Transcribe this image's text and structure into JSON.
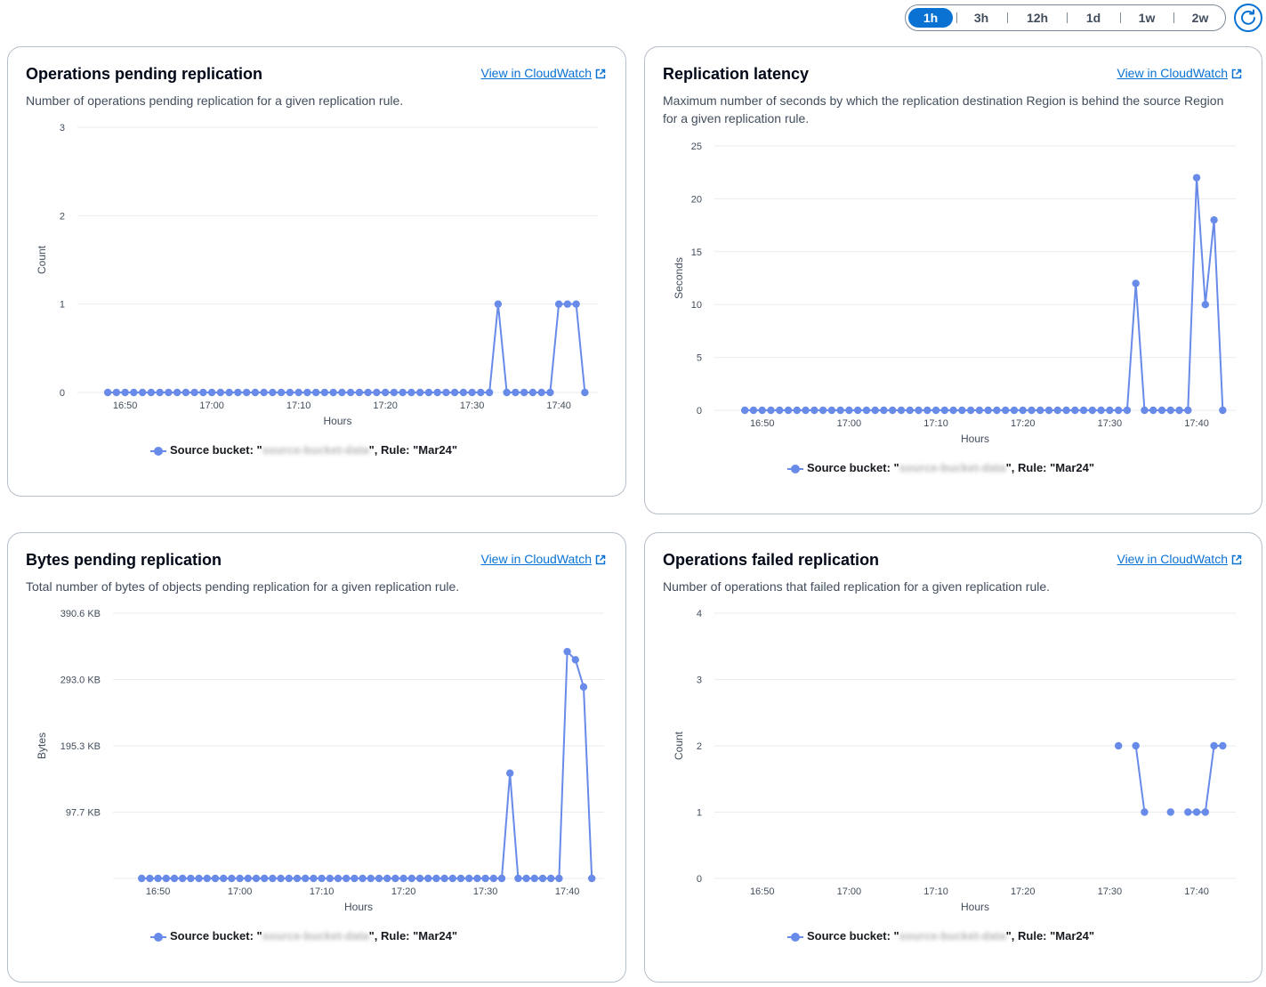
{
  "time_range": {
    "options": [
      "1h",
      "3h",
      "12h",
      "1d",
      "1w",
      "2w"
    ],
    "selected": "1h",
    "refresh_icon": "refresh-icon"
  },
  "colors": {
    "series": "#688ae8",
    "accent": "#0972d3"
  },
  "panels": [
    {
      "title": "Operations pending replication",
      "link": "View in CloudWatch",
      "description": "Number of operations pending replication for a given replication rule.",
      "legend": {
        "prefix": "Source bucket: \"",
        "redacted": "source-bucket-data",
        "suffix": "\", Rule: \"Mar24\""
      }
    },
    {
      "title": "Replication latency",
      "link": "View in CloudWatch",
      "description": "Maximum number of seconds by which the replication destination Region is behind the source Region for a given replication rule.",
      "legend": {
        "prefix": "Source bucket: \"",
        "redacted": "source-bucket-data",
        "suffix": "\", Rule: \"Mar24\""
      }
    },
    {
      "title": "Bytes pending replication",
      "link": "View in CloudWatch",
      "description": "Total number of bytes of objects pending replication for a given replication rule.",
      "legend": {
        "prefix": "Source bucket: \"",
        "redacted": "source-bucket-data",
        "suffix": "\", Rule: \"Mar24\""
      }
    },
    {
      "title": "Operations failed replication",
      "link": "View in CloudWatch",
      "description": "Number of operations that failed replication for a given replication rule.",
      "legend": {
        "prefix": "Source bucket: \"",
        "redacted": "source-bucket-data",
        "suffix": "\", Rule: \"Mar24\""
      }
    }
  ],
  "chart_data": [
    {
      "type": "line",
      "ylabel": "Count",
      "xlabel": "Hours",
      "ylim": [
        0,
        3
      ],
      "yticks": [
        "0",
        "1",
        "2",
        "3"
      ],
      "xticks": [
        "16:50",
        "17:00",
        "17:10",
        "17:20",
        "17:30",
        "17:40"
      ],
      "xlim_minutes": [
        -55.5,
        -3.5
      ],
      "x_minutes_from_1700": [
        -12,
        -11,
        -10,
        -9,
        -8,
        -7,
        -6,
        -5,
        -4,
        -3,
        -2,
        -1,
        0,
        1,
        2,
        3,
        4,
        5,
        6,
        7,
        8,
        9,
        10,
        11,
        12,
        13,
        14,
        15,
        16,
        17,
        18,
        19,
        20,
        21,
        22,
        23,
        24,
        25,
        26,
        27,
        28,
        29,
        30,
        31,
        32,
        33,
        34,
        35,
        36,
        37,
        38,
        39,
        40,
        41,
        42,
        43
      ],
      "series": [
        {
          "values": [
            0,
            0,
            0,
            0,
            0,
            0,
            0,
            0,
            0,
            0,
            0,
            0,
            0,
            0,
            0,
            0,
            0,
            0,
            0,
            0,
            0,
            0,
            0,
            0,
            0,
            0,
            0,
            0,
            0,
            0,
            0,
            0,
            0,
            0,
            0,
            0,
            0,
            0,
            0,
            0,
            0,
            0,
            0,
            0,
            0,
            1,
            0,
            0,
            0,
            0,
            0,
            0,
            1,
            1,
            1,
            0,
            0
          ]
        }
      ]
    },
    {
      "type": "line",
      "ylabel": "Seconds",
      "xlabel": "Hours",
      "ylim": [
        0,
        25
      ],
      "yticks": [
        "0",
        "5",
        "10",
        "15",
        "20",
        "25"
      ],
      "xticks": [
        "16:50",
        "17:00",
        "17:10",
        "17:20",
        "17:30",
        "17:40"
      ],
      "x_minutes_from_1700": [
        -12,
        -11,
        -10,
        -9,
        -8,
        -7,
        -6,
        -5,
        -4,
        -3,
        -2,
        -1,
        0,
        1,
        2,
        3,
        4,
        5,
        6,
        7,
        8,
        9,
        10,
        11,
        12,
        13,
        14,
        15,
        16,
        17,
        18,
        19,
        20,
        21,
        22,
        23,
        24,
        25,
        26,
        27,
        28,
        29,
        30,
        31,
        32,
        33,
        34,
        35,
        36,
        37,
        38,
        39,
        40,
        41,
        42,
        43
      ],
      "series": [
        {
          "values": [
            0,
            0,
            0,
            0,
            0,
            0,
            0,
            0,
            0,
            0,
            0,
            0,
            0,
            0,
            0,
            0,
            0,
            0,
            0,
            0,
            0,
            0,
            0,
            0,
            0,
            0,
            0,
            0,
            0,
            0,
            0,
            0,
            0,
            0,
            0,
            0,
            0,
            0,
            0,
            0,
            0,
            0,
            0,
            0,
            0,
            12,
            0,
            0,
            0,
            0,
            0,
            0,
            22,
            10,
            18,
            0,
            0
          ]
        }
      ]
    },
    {
      "type": "line",
      "ylabel": "Bytes",
      "xlabel": "Hours",
      "ylim": [
        0,
        390.6
      ],
      "yunit": "KB",
      "yticks": [
        "97.7 KB",
        "195.3 KB",
        "293.0 KB",
        "390.6 KB"
      ],
      "xticks": [
        "16:50",
        "17:00",
        "17:10",
        "17:20",
        "17:30",
        "17:40"
      ],
      "x_minutes_from_1700": [
        -12,
        -11,
        -10,
        -9,
        -8,
        -7,
        -6,
        -5,
        -4,
        -3,
        -2,
        -1,
        0,
        1,
        2,
        3,
        4,
        5,
        6,
        7,
        8,
        9,
        10,
        11,
        12,
        13,
        14,
        15,
        16,
        17,
        18,
        19,
        20,
        21,
        22,
        23,
        24,
        25,
        26,
        27,
        28,
        29,
        30,
        31,
        32,
        33,
        34,
        35,
        36,
        37,
        38,
        39,
        40,
        41,
        42,
        43
      ],
      "series": [
        {
          "values": [
            0,
            0,
            0,
            0,
            0,
            0,
            0,
            0,
            0,
            0,
            0,
            0,
            0,
            0,
            0,
            0,
            0,
            0,
            0,
            0,
            0,
            0,
            0,
            0,
            0,
            0,
            0,
            0,
            0,
            0,
            0,
            0,
            0,
            0,
            0,
            0,
            0,
            0,
            0,
            0,
            0,
            0,
            0,
            0,
            0,
            155,
            0,
            0,
            0,
            0,
            0,
            0,
            334,
            322,
            282,
            0,
            0
          ]
        }
      ]
    },
    {
      "type": "line",
      "ylabel": "Count",
      "xlabel": "Hours",
      "ylim": [
        0,
        4
      ],
      "yticks": [
        "0",
        "1",
        "2",
        "3",
        "4"
      ],
      "xticks": [
        "16:50",
        "17:00",
        "17:10",
        "17:20",
        "17:30",
        "17:40"
      ],
      "x_minutes_from_1700": [
        31,
        33,
        34,
        37,
        39,
        40,
        41,
        42,
        43
      ],
      "series": [
        {
          "values": [
            2,
            2,
            1,
            1,
            1,
            1,
            1,
            2,
            2
          ],
          "gap_after_index": [
            0,
            2,
            3
          ]
        }
      ]
    }
  ]
}
